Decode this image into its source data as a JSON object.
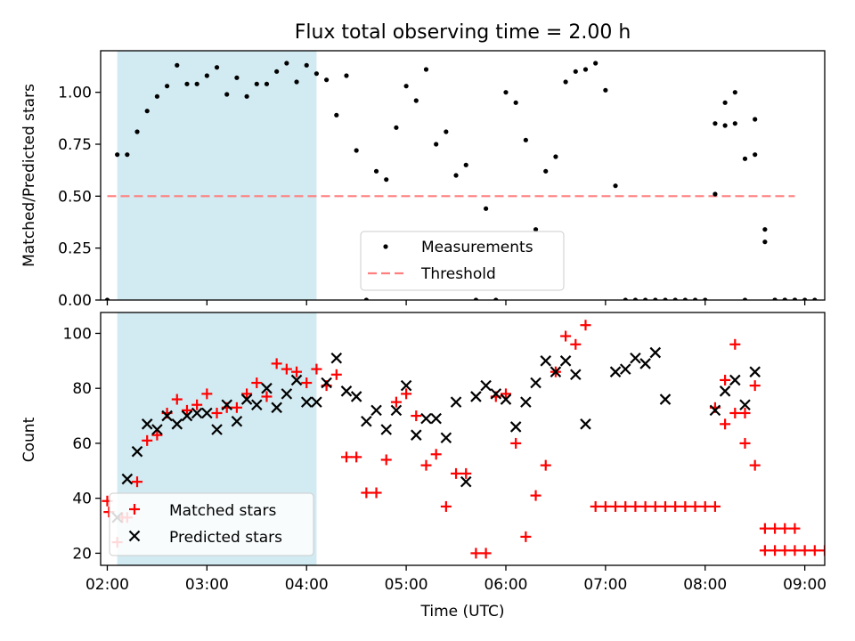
{
  "title": "Flux total observing time = 2.00 h",
  "colors": {
    "shade": "#add8e6",
    "measurement": "#000000",
    "threshold": "#ff7f7f",
    "matched": "#ff0000",
    "predicted": "#000000"
  },
  "chart_data": [
    {
      "type": "scatter",
      "ylabel": "Matched/Predicted stars",
      "xlabel": "",
      "ylim": [
        0,
        1.2
      ],
      "xlim": [
        "01:56",
        "09:12"
      ],
      "x_unit": "Time (UTC) as HH:MM",
      "yticks": [
        "0.00",
        "0.25",
        "0.50",
        "0.75",
        "1.00"
      ],
      "xtick_labels_shown": false,
      "shaded_interval": [
        "02:06",
        "04:06"
      ],
      "threshold": {
        "name": "Threshold",
        "value": 0.5,
        "x": [
          "02:00",
          "08:54"
        ],
        "style": "dashed"
      },
      "legend": {
        "position": "lower-center",
        "entries": [
          "Measurements",
          "Threshold"
        ]
      },
      "series": [
        {
          "name": "Measurements",
          "marker": "dot",
          "points": [
            [
              "02:00",
              0.0
            ],
            [
              "02:06",
              0.7
            ],
            [
              "02:12",
              0.7
            ],
            [
              "02:18",
              0.81
            ],
            [
              "02:24",
              0.91
            ],
            [
              "02:30",
              0.98
            ],
            [
              "02:36",
              1.03
            ],
            [
              "02:42",
              1.13
            ],
            [
              "02:48",
              1.04
            ],
            [
              "02:54",
              1.04
            ],
            [
              "03:00",
              1.08
            ],
            [
              "03:06",
              1.12
            ],
            [
              "03:12",
              0.99
            ],
            [
              "03:18",
              1.07
            ],
            [
              "03:24",
              0.98
            ],
            [
              "03:30",
              1.04
            ],
            [
              "03:36",
              1.04
            ],
            [
              "03:42",
              1.1
            ],
            [
              "03:48",
              1.14
            ],
            [
              "03:54",
              1.05
            ],
            [
              "04:00",
              1.13
            ],
            [
              "04:06",
              1.09
            ],
            [
              "04:12",
              1.06
            ],
            [
              "04:18",
              0.89
            ],
            [
              "04:24",
              1.08
            ],
            [
              "04:30",
              0.72
            ],
            [
              "04:36",
              0.0
            ],
            [
              "04:42",
              0.62
            ],
            [
              "04:48",
              0.58
            ],
            [
              "04:54",
              0.83
            ],
            [
              "05:00",
              1.03
            ],
            [
              "05:06",
              0.96
            ],
            [
              "05:12",
              1.11
            ],
            [
              "05:18",
              0.75
            ],
            [
              "05:24",
              0.81
            ],
            [
              "05:30",
              0.6
            ],
            [
              "05:36",
              0.65
            ],
            [
              "05:42",
              0.0
            ],
            [
              "05:48",
              0.44
            ],
            [
              "05:54",
              0.0
            ],
            [
              "06:00",
              1.0
            ],
            [
              "06:06",
              0.95
            ],
            [
              "06:12",
              0.77
            ],
            [
              "06:18",
              0.34
            ],
            [
              "06:24",
              0.62
            ],
            [
              "06:30",
              0.69
            ],
            [
              "06:36",
              1.05
            ],
            [
              "06:42",
              1.1
            ],
            [
              "06:48",
              1.11
            ],
            [
              "06:54",
              1.14
            ],
            [
              "07:00",
              1.01
            ],
            [
              "07:06",
              0.55
            ],
            [
              "07:12",
              0.0
            ],
            [
              "07:18",
              0.0
            ],
            [
              "07:24",
              0.0
            ],
            [
              "07:30",
              0.0
            ],
            [
              "07:36",
              0.0
            ],
            [
              "07:42",
              0.0
            ],
            [
              "07:48",
              0.0
            ],
            [
              "07:54",
              0.0
            ],
            [
              "08:00",
              0.0
            ],
            [
              "08:06",
              0.85
            ],
            [
              "08:12",
              0.95
            ],
            [
              "08:18",
              1.0
            ],
            [
              "08:24",
              0.68
            ],
            [
              "08:30",
              0.87
            ],
            [
              "08:36",
              0.28
            ],
            [
              "08:42",
              0.0
            ],
            [
              "08:48",
              0.0
            ],
            [
              "08:54",
              0.0
            ],
            [
              "09:00",
              0.0
            ],
            [
              "09:06",
              0.0
            ],
            [
              "08:06",
              0.51
            ],
            [
              "08:12",
              0.84
            ],
            [
              "08:18",
              0.85
            ],
            [
              "08:24",
              0.0
            ],
            [
              "08:30",
              0.7
            ],
            [
              "08:36",
              0.34
            ],
            [
              "08:42",
              0.0
            ],
            [
              "08:48",
              0.0
            ],
            [
              "08:54",
              0.0
            ]
          ]
        }
      ]
    },
    {
      "type": "scatter",
      "ylabel": "Count",
      "xlabel": "Time (UTC)",
      "ylim": [
        15.6,
        107.6
      ],
      "xlim": [
        "01:56",
        "09:12"
      ],
      "x_unit": "Time (UTC) as HH:MM",
      "yticks": [
        "20",
        "40",
        "60",
        "80",
        "100"
      ],
      "xticks": [
        "02:00",
        "03:00",
        "04:00",
        "05:00",
        "06:00",
        "07:00",
        "08:00",
        "09:00"
      ],
      "shaded_interval": [
        "02:06",
        "04:06"
      ],
      "legend": {
        "position": "lower-left",
        "entries": [
          "Matched stars",
          "Predicted stars"
        ]
      },
      "series": [
        {
          "name": "Matched stars",
          "marker": "plus",
          "points": [
            [
              "02:00",
              39
            ],
            [
              "02:01",
              35
            ],
            [
              "02:06",
              24
            ],
            [
              "02:09",
              33
            ],
            [
              "02:12",
              33
            ],
            [
              "02:18",
              46
            ],
            [
              "02:24",
              61
            ],
            [
              "02:30",
              63
            ],
            [
              "02:36",
              71
            ],
            [
              "02:42",
              76
            ],
            [
              "02:48",
              72
            ],
            [
              "02:54",
              74
            ],
            [
              "03:00",
              78
            ],
            [
              "03:06",
              71
            ],
            [
              "03:12",
              73
            ],
            [
              "03:18",
              73
            ],
            [
              "03:24",
              78
            ],
            [
              "03:30",
              82
            ],
            [
              "03:36",
              77
            ],
            [
              "03:42",
              89
            ],
            [
              "03:48",
              87
            ],
            [
              "03:54",
              86
            ],
            [
              "04:00",
              82
            ],
            [
              "04:06",
              87
            ],
            [
              "04:12",
              81
            ],
            [
              "04:18",
              85
            ],
            [
              "04:24",
              55
            ],
            [
              "04:30",
              55
            ],
            [
              "04:36",
              42
            ],
            [
              "04:42",
              42
            ],
            [
              "04:48",
              54
            ],
            [
              "04:54",
              75
            ],
            [
              "05:00",
              78
            ],
            [
              "05:06",
              70
            ],
            [
              "05:12",
              52
            ],
            [
              "05:18",
              56
            ],
            [
              "05:24",
              37
            ],
            [
              "05:30",
              49
            ],
            [
              "05:36",
              49
            ],
            [
              "05:42",
              20
            ],
            [
              "05:48",
              20
            ],
            [
              "05:54",
              77
            ],
            [
              "06:00",
              78
            ],
            [
              "06:06",
              60
            ],
            [
              "06:12",
              26
            ],
            [
              "06:18",
              41
            ],
            [
              "06:24",
              52
            ],
            [
              "06:30",
              86
            ],
            [
              "06:36",
              99
            ],
            [
              "06:42",
              96
            ],
            [
              "06:48",
              103
            ],
            [
              "06:54",
              37
            ],
            [
              "07:00",
              37
            ],
            [
              "07:06",
              37
            ],
            [
              "07:12",
              37
            ],
            [
              "07:18",
              37
            ],
            [
              "07:24",
              37
            ],
            [
              "07:30",
              37
            ],
            [
              "07:36",
              37
            ],
            [
              "07:42",
              37
            ],
            [
              "07:48",
              37
            ],
            [
              "07:54",
              37
            ],
            [
              "08:00",
              37
            ],
            [
              "08:06",
              73
            ],
            [
              "08:12",
              83
            ],
            [
              "08:18",
              96
            ],
            [
              "08:24",
              60
            ],
            [
              "08:30",
              81
            ],
            [
              "08:36",
              21
            ],
            [
              "08:42",
              21
            ],
            [
              "08:48",
              21
            ],
            [
              "08:54",
              21
            ],
            [
              "09:00",
              21
            ],
            [
              "09:06",
              21
            ],
            [
              "09:12",
              21
            ],
            [
              "08:06",
              37
            ],
            [
              "08:12",
              67
            ],
            [
              "08:18",
              71
            ],
            [
              "08:24",
              71
            ],
            [
              "08:30",
              52
            ],
            [
              "08:36",
              29
            ],
            [
              "08:42",
              29
            ],
            [
              "08:48",
              29
            ],
            [
              "08:54",
              29
            ]
          ]
        },
        {
          "name": "Predicted stars",
          "marker": "x",
          "points": [
            [
              "02:06",
              33
            ],
            [
              "02:12",
              47
            ],
            [
              "02:18",
              57
            ],
            [
              "02:24",
              67
            ],
            [
              "02:30",
              65
            ],
            [
              "02:36",
              70
            ],
            [
              "02:42",
              67
            ],
            [
              "02:48",
              70
            ],
            [
              "02:54",
              71
            ],
            [
              "03:00",
              71
            ],
            [
              "03:06",
              65
            ],
            [
              "03:12",
              74
            ],
            [
              "03:18",
              68
            ],
            [
              "03:24",
              76
            ],
            [
              "03:30",
              74
            ],
            [
              "03:36",
              80
            ],
            [
              "03:42",
              73
            ],
            [
              "03:48",
              78
            ],
            [
              "03:54",
              83
            ],
            [
              "04:00",
              75
            ],
            [
              "04:06",
              75
            ],
            [
              "04:12",
              82
            ],
            [
              "04:18",
              91
            ],
            [
              "04:24",
              79
            ],
            [
              "04:30",
              77
            ],
            [
              "04:36",
              68
            ],
            [
              "04:42",
              72
            ],
            [
              "04:48",
              65
            ],
            [
              "04:54",
              72
            ],
            [
              "05:00",
              81
            ],
            [
              "05:06",
              63
            ],
            [
              "05:12",
              69
            ],
            [
              "05:18",
              69
            ],
            [
              "05:24",
              62
            ],
            [
              "05:30",
              75
            ],
            [
              "05:36",
              46
            ],
            [
              "05:42",
              77
            ],
            [
              "05:48",
              81
            ],
            [
              "05:54",
              78
            ],
            [
              "06:00",
              76
            ],
            [
              "06:06",
              66
            ],
            [
              "06:12",
              75
            ],
            [
              "06:18",
              82
            ],
            [
              "06:24",
              90
            ],
            [
              "06:30",
              86
            ],
            [
              "06:36",
              90
            ],
            [
              "06:42",
              85
            ],
            [
              "06:48",
              67
            ],
            [
              "07:06",
              86
            ],
            [
              "07:12",
              87
            ],
            [
              "07:18",
              91
            ],
            [
              "07:24",
              89
            ],
            [
              "07:30",
              93
            ],
            [
              "07:36",
              76
            ],
            [
              "08:06",
              72
            ],
            [
              "08:12",
              79
            ],
            [
              "08:18",
              83
            ],
            [
              "08:24",
              74
            ],
            [
              "08:30",
              86
            ]
          ]
        }
      ]
    }
  ]
}
